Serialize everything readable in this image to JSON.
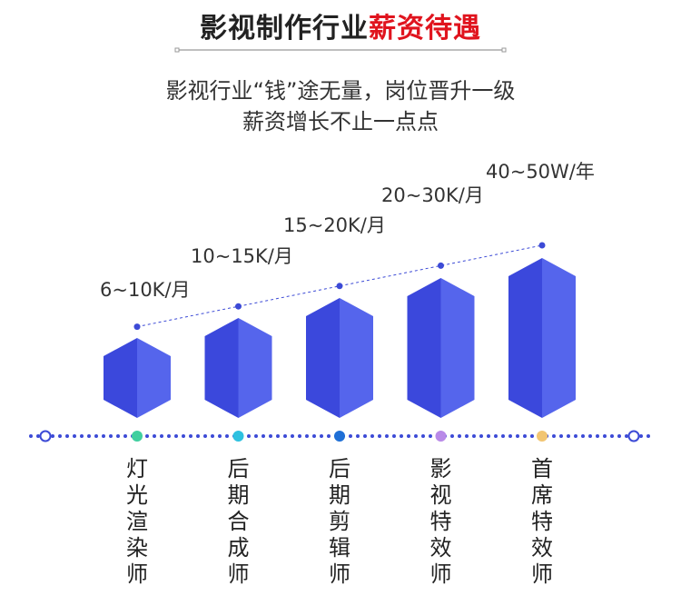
{
  "title": {
    "part1": "影视制作行业",
    "part2": "薪资待遇"
  },
  "subtitle": {
    "line1": "影视行业“钱”途无量，岗位晋升一级",
    "line2": "薪资增长不止一点点"
  },
  "colors": {
    "accent": "#e0141e",
    "bar_dark": "#3b48dc",
    "bar_light": "#5565ec",
    "dots": "#3c4ad6"
  },
  "chart_data": {
    "type": "bar",
    "title": "薪资待遇",
    "xlabel": "",
    "ylabel": "",
    "grid": false,
    "categories": [
      "灯光渲染师",
      "后期合成师",
      "后期剪辑师",
      "影视特效师",
      "首席特效师"
    ],
    "value_labels": [
      "6~10K/月",
      "10~15K/月",
      "15~20K/月",
      "20~30K/月",
      "40~50W/年"
    ],
    "values": [
      1,
      2,
      3,
      4,
      5
    ],
    "marker_colors": [
      "#3fcf9f",
      "#2ec1e0",
      "#1f6fd6",
      "#b98ae8",
      "#f2c572"
    ]
  }
}
